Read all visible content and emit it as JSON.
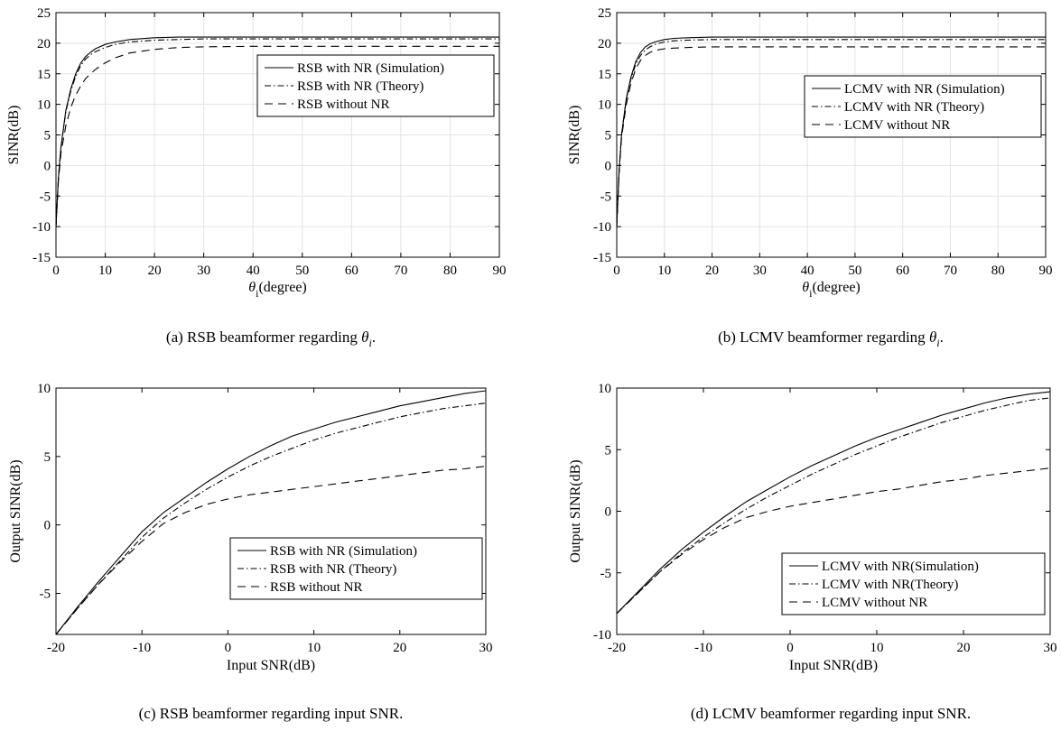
{
  "chart_data": [
    {
      "type": "line",
      "caption_text": "(a)  RSB beamformer regarding ",
      "caption_math": "θ",
      "caption_sub": "i",
      "caption_end": ".",
      "xlabel_main": "θ",
      "xlabel_sub": "i",
      "xlabel_rest": "(degree)",
      "ylabel": "SINR(dB)",
      "xlim": [
        0,
        90
      ],
      "ylim": [
        -15,
        25
      ],
      "xticks": [
        "0",
        "10",
        "20",
        "30",
        "40",
        "50",
        "60",
        "70",
        "80",
        "90"
      ],
      "yticks": [
        "-15",
        "-10",
        "-5",
        "0",
        "5",
        "10",
        "15",
        "20",
        "25"
      ],
      "grid": true,
      "legend_position": "upper-right",
      "series": [
        {
          "name": "RSB with NR (Simulation)",
          "style": "solid",
          "x": [
            0,
            0.5,
            1,
            2,
            3,
            4,
            5,
            6,
            7,
            8,
            10,
            12,
            15,
            20,
            25,
            30,
            40,
            50,
            60,
            70,
            80,
            90
          ],
          "y": [
            -10,
            -2,
            3,
            9,
            12.5,
            15,
            16.7,
            17.8,
            18.5,
            19.1,
            19.8,
            20.2,
            20.6,
            20.9,
            21.0,
            21.0,
            21.0,
            21.0,
            21.0,
            21.0,
            21.0,
            21.0
          ]
        },
        {
          "name": "RSB with NR (Theory)",
          "style": "dashdot",
          "x": [
            0,
            0.5,
            1,
            2,
            3,
            4,
            5,
            6,
            7,
            8,
            10,
            12,
            15,
            20,
            25,
            30,
            40,
            50,
            60,
            70,
            80,
            90
          ],
          "y": [
            -10,
            -2,
            3,
            8.8,
            12.2,
            14.6,
            16.3,
            17.4,
            18.1,
            18.6,
            19.3,
            19.8,
            20.2,
            20.5,
            20.6,
            20.7,
            20.7,
            20.7,
            20.7,
            20.7,
            20.7,
            20.7
          ]
        },
        {
          "name": "RSB without NR",
          "style": "dashed",
          "x": [
            0,
            0.5,
            1,
            2,
            3,
            4,
            5,
            6,
            7,
            8,
            10,
            12,
            15,
            20,
            25,
            30,
            40,
            50,
            60,
            70,
            80,
            90
          ],
          "y": [
            -10,
            -2.5,
            2,
            6.5,
            9.5,
            11.5,
            13,
            14.2,
            15,
            15.7,
            16.8,
            17.6,
            18.4,
            19.0,
            19.3,
            19.4,
            19.5,
            19.5,
            19.5,
            19.5,
            19.5,
            19.5
          ]
        }
      ]
    },
    {
      "type": "line",
      "caption_text": "(b) LCMV beamformer regarding ",
      "caption_math": "θ",
      "caption_sub": "i",
      "caption_end": ".",
      "xlabel_main": "θ",
      "xlabel_sub": "i",
      "xlabel_rest": "(degree)",
      "ylabel": "SINR(dB)",
      "xlim": [
        0,
        90
      ],
      "ylim": [
        -15,
        25
      ],
      "xticks": [
        "0",
        "10",
        "20",
        "30",
        "40",
        "50",
        "60",
        "70",
        "80",
        "90"
      ],
      "yticks": [
        "-15",
        "-10",
        "-5",
        "0",
        "5",
        "10",
        "15",
        "20",
        "25"
      ],
      "grid": true,
      "legend_position": "upper-right",
      "series": [
        {
          "name": "LCMV with NR (Simulation)",
          "style": "solid",
          "x": [
            0,
            0.5,
            1,
            2,
            3,
            4,
            5,
            6,
            7,
            8,
            10,
            12,
            15,
            20,
            25,
            30,
            40,
            50,
            60,
            70,
            80,
            90
          ],
          "y": [
            -10,
            -1,
            5,
            11,
            14.5,
            17,
            18.5,
            19.4,
            19.9,
            20.2,
            20.6,
            20.8,
            20.9,
            21.0,
            21.0,
            21.0,
            21.0,
            21.0,
            21.0,
            21.0,
            21.0,
            21.0
          ]
        },
        {
          "name": "LCMV with NR (Theory)",
          "style": "dashdot",
          "x": [
            0,
            0.5,
            1,
            2,
            3,
            4,
            5,
            6,
            7,
            8,
            10,
            12,
            15,
            20,
            25,
            30,
            40,
            50,
            60,
            70,
            80,
            90
          ],
          "y": [
            -10,
            -1,
            5,
            10.8,
            14.2,
            16.6,
            18.0,
            18.9,
            19.4,
            19.8,
            20.2,
            20.4,
            20.5,
            20.6,
            20.6,
            20.6,
            20.6,
            20.6,
            20.6,
            20.6,
            20.6,
            20.6
          ]
        },
        {
          "name": "LCMV without NR",
          "style": "dashed",
          "x": [
            0,
            0.5,
            1,
            2,
            3,
            4,
            5,
            6,
            7,
            8,
            10,
            12,
            15,
            20,
            25,
            30,
            40,
            50,
            60,
            70,
            80,
            90
          ],
          "y": [
            -10,
            -1.2,
            4.5,
            10,
            13.5,
            15.8,
            17.2,
            18.0,
            18.5,
            18.8,
            19.1,
            19.2,
            19.3,
            19.4,
            19.4,
            19.4,
            19.4,
            19.4,
            19.4,
            19.4,
            19.4,
            19.4
          ]
        }
      ]
    },
    {
      "type": "line",
      "caption_text": "(c) RSB beamformer regarding input SNR.",
      "xlabel": "Input SNR(dB)",
      "ylabel": "Output SINR(dB)",
      "xlim": [
        -20,
        30
      ],
      "ylim": [
        -8,
        10
      ],
      "xticks": [
        "-20",
        "-10",
        "0",
        "10",
        "20",
        "30"
      ],
      "yticks": [
        "-5",
        "0",
        "5",
        "10"
      ],
      "ytick_values": [
        -5,
        0,
        5,
        10
      ],
      "grid": false,
      "legend_position": "lower-right",
      "series": [
        {
          "name": "RSB with NR (Simulation)",
          "style": "solid",
          "x": [
            -20,
            -17.5,
            -15,
            -12.5,
            -10,
            -7.5,
            -5,
            -2.5,
            0,
            2.5,
            5,
            7.5,
            10,
            12.5,
            15,
            17.5,
            20,
            22.5,
            25,
            27.5,
            30
          ],
          "y": [
            -8,
            -6,
            -4.1,
            -2.3,
            -0.5,
            0.9,
            2.0,
            3.1,
            4.1,
            5.0,
            5.8,
            6.5,
            7.0,
            7.5,
            7.9,
            8.3,
            8.7,
            9.0,
            9.3,
            9.6,
            9.8
          ]
        },
        {
          "name": "RSB with NR (Theory)",
          "style": "dashdot",
          "x": [
            -20,
            -17.5,
            -15,
            -12.5,
            -10,
            -7.5,
            -5,
            -2.5,
            0,
            2.5,
            5,
            7.5,
            10,
            12.5,
            15,
            17.5,
            20,
            22.5,
            25,
            27.5,
            30
          ],
          "y": [
            -8,
            -6.1,
            -4.3,
            -2.6,
            -0.9,
            0.5,
            1.6,
            2.6,
            3.5,
            4.3,
            5.0,
            5.6,
            6.2,
            6.7,
            7.1,
            7.5,
            7.9,
            8.2,
            8.5,
            8.7,
            8.9
          ]
        },
        {
          "name": "RSB without NR",
          "style": "dashed",
          "x": [
            -20,
            -17.5,
            -15,
            -12.5,
            -10,
            -7.5,
            -5,
            -2.5,
            0,
            2.5,
            5,
            7.5,
            10,
            12.5,
            15,
            17.5,
            20,
            22.5,
            25,
            27.5,
            30
          ],
          "y": [
            -8,
            -6.1,
            -4.3,
            -2.7,
            -1.2,
            0.1,
            0.9,
            1.5,
            1.9,
            2.2,
            2.4,
            2.6,
            2.8,
            3.0,
            3.2,
            3.4,
            3.6,
            3.8,
            4.0,
            4.1,
            4.3
          ]
        }
      ]
    },
    {
      "type": "line",
      "caption_text": "(d) LCMV beamformer regarding input SNR.",
      "xlabel": "Input SNR(dB)",
      "ylabel": "Output SINR(dB)",
      "xlim": [
        -20,
        30
      ],
      "ylim": [
        -10,
        10
      ],
      "xticks": [
        "-20",
        "-10",
        "0",
        "10",
        "20",
        "30"
      ],
      "yticks": [
        "-10",
        "-5",
        "0",
        "5",
        "10"
      ],
      "ytick_values": [
        -10,
        -5,
        0,
        5,
        10
      ],
      "grid": false,
      "legend_position": "lower-right",
      "series": [
        {
          "name": "LCMV with NR(Simulation)",
          "style": "solid",
          "x": [
            -20,
            -17.5,
            -15,
            -12.5,
            -10,
            -7.5,
            -5,
            -2.5,
            0,
            2.5,
            5,
            7.5,
            10,
            12.5,
            15,
            17.5,
            20,
            22.5,
            25,
            27.5,
            30
          ],
          "y": [
            -8.3,
            -6.5,
            -4.7,
            -3.1,
            -1.7,
            -0.4,
            0.8,
            1.8,
            2.8,
            3.7,
            4.5,
            5.3,
            6.0,
            6.6,
            7.2,
            7.8,
            8.3,
            8.8,
            9.2,
            9.5,
            9.7
          ]
        },
        {
          "name": "LCMV with NR(Theory)",
          "style": "dashdot",
          "x": [
            -20,
            -17.5,
            -15,
            -12.5,
            -10,
            -7.5,
            -5,
            -2.5,
            0,
            2.5,
            5,
            7.5,
            10,
            12.5,
            15,
            17.5,
            20,
            22.5,
            25,
            27.5,
            30
          ],
          "y": [
            -8.3,
            -6.6,
            -4.9,
            -3.4,
            -2.1,
            -0.9,
            0.2,
            1.2,
            2.1,
            3.0,
            3.8,
            4.6,
            5.3,
            6.0,
            6.6,
            7.2,
            7.7,
            8.2,
            8.6,
            9.0,
            9.2
          ]
        },
        {
          "name": "LCMV without NR",
          "style": "dashed",
          "x": [
            -20,
            -17.5,
            -15,
            -12.5,
            -10,
            -7.5,
            -5,
            -2.5,
            0,
            2.5,
            5,
            7.5,
            10,
            12.5,
            15,
            17.5,
            20,
            22.5,
            25,
            27.5,
            30
          ],
          "y": [
            -8.3,
            -6.6,
            -4.9,
            -3.5,
            -2.3,
            -1.3,
            -0.5,
            0.0,
            0.4,
            0.7,
            1.0,
            1.3,
            1.6,
            1.8,
            2.1,
            2.4,
            2.6,
            2.9,
            3.1,
            3.3,
            3.5
          ]
        }
      ]
    }
  ]
}
